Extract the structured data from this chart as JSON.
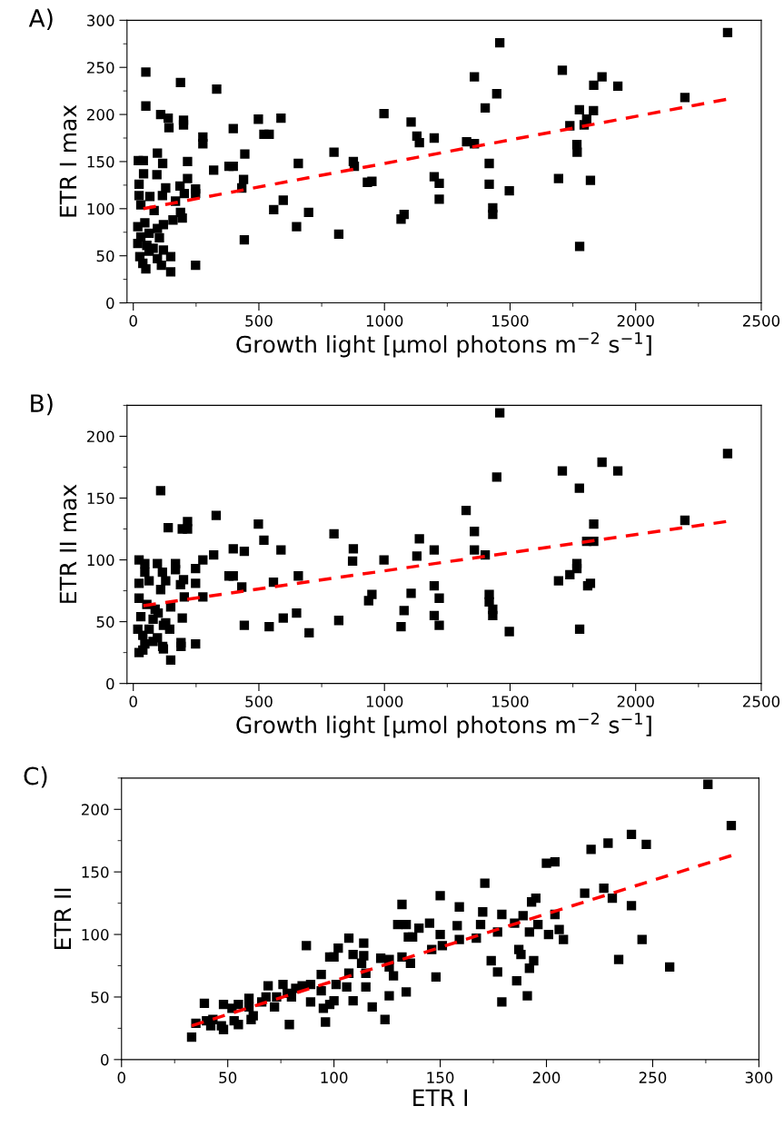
{
  "chart_data": [
    {
      "type": "scatter",
      "title": "A)",
      "xlabel": "Growth light [μmol photons m$^{−2}$ s$^{−1}$]",
      "ylabel": "ETR I max",
      "xlim": [
        -25,
        2500
      ],
      "ylim": [
        0,
        300
      ],
      "xticks": [
        0,
        500,
        1000,
        1500,
        2000,
        2500
      ],
      "yticks": [
        0,
        50,
        100,
        150,
        200,
        250,
        300
      ],
      "grid": false,
      "legend": false,
      "series": [
        {
          "color": "#000000",
          "marker": "square",
          "x": [
            2366,
            1459,
            50,
            188,
            332,
            50,
            1358,
            1708,
            1866,
            1833,
            1929,
            1447,
            2196,
            1401,
            109,
            139,
            142,
            200,
            200,
            398,
            498,
            588,
            520,
            541,
            277,
            277,
            998,
            1106,
            1129,
            1139,
            1198,
            1327,
            1358,
            1776,
            1832,
            1805,
            1795,
            1738,
            1766,
            1767,
            1417,
            1417,
            1431,
            1431,
            1497,
            1693,
            1820,
            1777,
            1198,
            1218,
            1218,
            1066,
            1078,
            932,
            950,
            876,
            880,
            799,
            657,
            597,
            559,
            698,
            650,
            818,
            444,
            439,
            432,
            442,
            320,
            381,
            398,
            248,
            248,
            248,
            216,
            216,
            96,
            117,
            94,
            41,
            20,
            40,
            129,
            186,
            203,
            168,
            23,
            23,
            66,
            116,
            30,
            83,
            188,
            195,
            158,
            120,
            18,
            46,
            96,
            63,
            30,
            104,
            18,
            54,
            79,
            120,
            26,
            149,
            63,
            38,
            112,
            50,
            149,
            96
          ],
          "values": [
            287,
            276,
            245,
            234,
            227,
            209,
            240,
            247,
            240,
            231,
            230,
            222,
            218,
            207,
            200,
            196,
            186,
            194,
            189,
            185,
            195,
            196,
            179,
            179,
            176,
            169,
            201,
            192,
            177,
            170,
            175,
            171,
            169,
            205,
            204,
            195,
            189,
            188,
            168,
            160,
            148,
            126,
            101,
            94,
            119,
            132,
            130,
            60,
            134,
            127,
            110,
            89,
            94,
            128,
            129,
            150,
            145,
            160,
            148,
            109,
            99,
            96,
            81,
            73,
            158,
            131,
            122,
            67,
            141,
            145,
            145,
            40,
            121,
            116,
            150,
            132,
            159,
            148,
            136,
            137,
            151,
            151,
            122,
            124,
            116,
            108,
            126,
            114,
            113,
            114,
            104,
            98,
            96,
            90,
            88,
            83,
            81,
            85,
            79,
            74,
            70,
            69,
            63,
            61,
            58,
            56,
            49,
            49,
            55,
            42,
            40,
            36,
            33,
            47
          ]
        },
        {
          "type": "line",
          "color": "#ff0000",
          "marker": "none",
          "line_style": "dashed",
          "x": [
            40,
            2360
          ],
          "values": [
            100,
            216
          ]
        }
      ]
    },
    {
      "type": "scatter",
      "title": "B)",
      "xlabel": "Growth light [μmol photons m$^{−2}$ s$^{−1}$]",
      "ylabel": "ETR II max",
      "xlim": [
        -25,
        2500
      ],
      "ylim": [
        0,
        225
      ],
      "xticks": [
        0,
        500,
        1000,
        1500,
        2000,
        2500
      ],
      "yticks": [
        0,
        50,
        100,
        150,
        200
      ],
      "grid": false,
      "legend": false,
      "series": [
        {
          "color": "#000000",
          "marker": "square",
          "x": [
            1459,
            2366,
            109,
            330,
            1866,
            1708,
            1929,
            1447,
            1776,
            1325,
            2196,
            1833,
            1805,
            1833,
            1358,
            1358,
            1401,
            1766,
            1766,
            1738,
            1693,
            1820,
            1809,
            1777,
            1417,
            1417,
            1431,
            1431,
            1497,
            1139,
            1129,
            1198,
            1198,
            1218,
            1198,
            1218,
            1106,
            1078,
            1066,
            998,
            950,
            937,
            876,
            873,
            799,
            818,
            657,
            650,
            597,
            700,
            541,
            558,
            588,
            520,
            498,
            442,
            398,
            432,
            442,
            381,
            398,
            320,
            277,
            277,
            248,
            248,
            248,
            216,
            216,
            195,
            139,
            200,
            188,
            203,
            168,
            168,
            195,
            149,
            190,
            190,
            149,
            117,
            120,
            23,
            46,
            96,
            116,
            46,
            23,
            63,
            129,
            109,
            23,
            54,
            99,
            30,
            79,
            129,
            18,
            63,
            145,
            38,
            96,
            46,
            79,
            23,
            38,
            120,
            87
          ],
          "values": [
            219,
            186,
            156,
            136,
            179,
            172,
            172,
            167,
            158,
            140,
            132,
            129,
            115,
            115,
            123,
            108,
            104,
            97,
            93,
            88,
            83,
            81,
            79,
            44,
            72,
            66,
            60,
            55,
            42,
            117,
            103,
            108,
            79,
            69,
            55,
            47,
            73,
            59,
            46,
            100,
            72,
            67,
            109,
            99,
            121,
            51,
            87,
            57,
            53,
            41,
            46,
            82,
            108,
            116,
            129,
            107,
            109,
            78,
            47,
            87,
            87,
            104,
            100,
            70,
            93,
            81,
            32,
            131,
            125,
            125,
            126,
            84,
            80,
            70,
            97,
            92,
            53,
            62,
            33,
            30,
            19,
            30,
            28,
            100,
            97,
            97,
            90,
            90,
            81,
            83,
            83,
            76,
            69,
            64,
            57,
            54,
            52,
            49,
            44,
            44,
            44,
            39,
            37,
            32,
            34,
            25,
            27,
            47,
            60
          ]
        },
        {
          "type": "line",
          "color": "#ff0000",
          "marker": "none",
          "line_style": "dashed",
          "x": [
            40,
            2360
          ],
          "values": [
            63,
            131
          ]
        }
      ]
    },
    {
      "type": "scatter",
      "title": "C)",
      "xlabel": "ETR I",
      "ylabel": "ETR II",
      "xlim": [
        0,
        300
      ],
      "ylim": [
        0,
        225
      ],
      "xticks": [
        0,
        50,
        100,
        150,
        200,
        250,
        300
      ],
      "yticks": [
        0,
        50,
        100,
        150,
        200
      ],
      "grid": false,
      "legend": false,
      "series": [
        {
          "color": "#000000",
          "marker": "square",
          "x": [
            276,
            287,
            240,
            229,
            247,
            221,
            200,
            204,
            171,
            150,
            132,
            218,
            227,
            231,
            195,
            193,
            240,
            159,
            170,
            179,
            189,
            204,
            185,
            196,
            145,
            140,
            130,
            134,
            158,
            169,
            192,
            206,
            201,
            208,
            245,
            177,
            150,
            135,
            137,
            159,
            167,
            107,
            114,
            87,
            102,
            151,
            146,
            100,
            98,
            109,
            114,
            122,
            126,
            132,
            136,
            113,
            187,
            188,
            174,
            194,
            234,
            177,
            192,
            186,
            191,
            179,
            258,
            126,
            128,
            148,
            115,
            107,
            94,
            89,
            101,
            106,
            115,
            94,
            76,
            82,
            69,
            85,
            78,
            89,
            80,
            134,
            126,
            100,
            98,
            109,
            95,
            118,
            73,
            68,
            72,
            60,
            55,
            48,
            52,
            62,
            61,
            53,
            55,
            39,
            43,
            40,
            42,
            47,
            48,
            79,
            96,
            124,
            33,
            35,
            60,
            66
          ],
          "values": [
            220,
            187,
            180,
            173,
            172,
            168,
            157,
            158,
            141,
            131,
            124,
            133,
            137,
            129,
            129,
            126,
            123,
            122,
            118,
            116,
            115,
            116,
            109,
            108,
            109,
            105,
            108,
            108,
            107,
            108,
            102,
            104,
            100,
            96,
            96,
            102,
            100,
            98,
            98,
            96,
            97,
            97,
            93,
            91,
            89,
            91,
            88,
            82,
            82,
            84,
            83,
            81,
            80,
            82,
            77,
            77,
            88,
            84,
            79,
            79,
            80,
            70,
            73,
            63,
            51,
            46,
            74,
            74,
            67,
            66,
            69,
            69,
            68,
            60,
            60,
            58,
            58,
            55,
            60,
            57,
            59,
            59,
            53,
            46,
            50,
            54,
            51,
            47,
            44,
            47,
            41,
            42,
            50,
            50,
            42,
            49,
            44,
            44,
            41,
            35,
            32,
            31,
            28,
            45,
            32,
            31,
            27,
            27,
            24,
            28,
            30,
            32,
            18,
            29,
            42,
            46
          ]
        },
        {
          "type": "line",
          "color": "#ff0000",
          "marker": "none",
          "line_style": "dashed",
          "x": [
            33,
            287
          ],
          "values": [
            27,
            163
          ]
        }
      ]
    }
  ]
}
